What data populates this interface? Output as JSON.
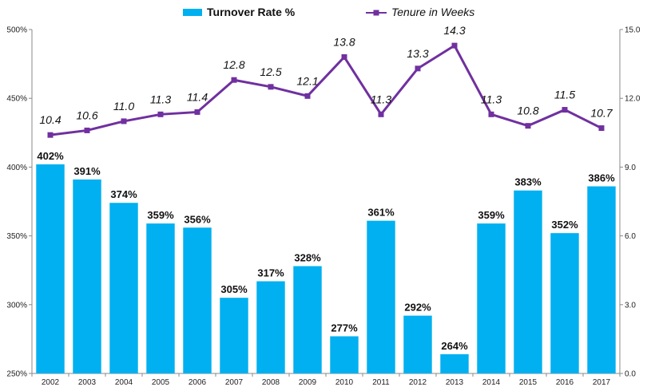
{
  "chart_data": {
    "type": "bar",
    "categories": [
      "2002",
      "2003",
      "2004",
      "2005",
      "2006",
      "2007",
      "2008",
      "2009",
      "2010",
      "2011",
      "2012",
      "2013",
      "2014",
      "2015",
      "2016",
      "2017"
    ],
    "series": [
      {
        "name": "Turnover Rate %",
        "type": "bar",
        "axis": "left",
        "color": "#00b0f0",
        "values": [
          402,
          391,
          374,
          359,
          356,
          305,
          317,
          328,
          277,
          361,
          292,
          264,
          359,
          383,
          352,
          386
        ],
        "labels": [
          "402%",
          "391%",
          "374%",
          "359%",
          "356%",
          "305%",
          "317%",
          "328%",
          "277%",
          "361%",
          "292%",
          "264%",
          "359%",
          "383%",
          "352%",
          "386%"
        ]
      },
      {
        "name": "Tenure in Weeks",
        "type": "line",
        "axis": "right",
        "color": "#7030a0",
        "values": [
          10.4,
          10.6,
          11.0,
          11.3,
          11.4,
          12.8,
          12.5,
          12.1,
          13.8,
          11.3,
          13.3,
          14.3,
          11.3,
          10.8,
          11.5,
          10.7
        ],
        "labels": [
          "10.4",
          "10.6",
          "11.0",
          "11.3",
          "11.4",
          "12.8",
          "12.5",
          "12.1",
          "13.8",
          "11.3",
          "13.3",
          "14.3",
          "11.3",
          "10.8",
          "11.5",
          "10.7"
        ]
      }
    ],
    "y_left": {
      "min": 250,
      "max": 500,
      "ticks": [
        "250%",
        "300%",
        "350%",
        "400%",
        "450%",
        "500%"
      ]
    },
    "y_right": {
      "min": 0,
      "max": 15,
      "ticks": [
        "0.0",
        "3.0",
        "6.0",
        "9.0",
        "12.0",
        "15.0"
      ]
    },
    "legend": {
      "position": "top"
    },
    "grid": false
  }
}
